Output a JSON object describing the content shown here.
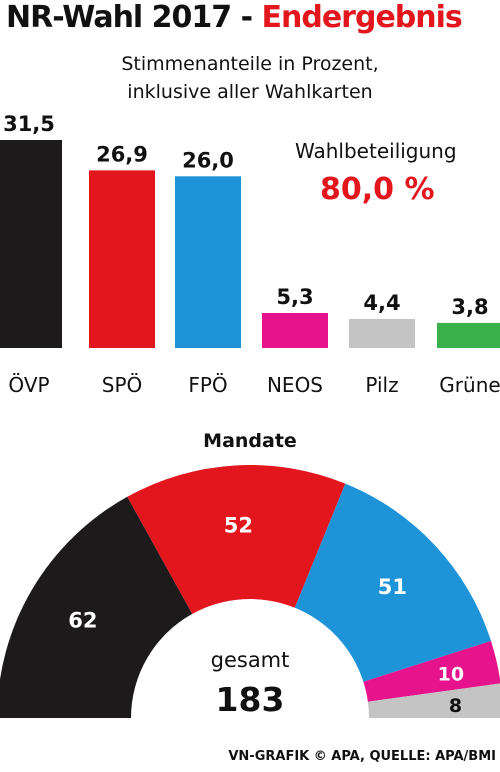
{
  "header": {
    "title_main": "NR-Wahl 2017 - ",
    "title_accent": "Endergebnis",
    "subtitle_line1": "Stimmenanteile in Prozent,",
    "subtitle_line2": "inklusive aller Wahlkarten"
  },
  "turnout": {
    "label": "Wahlbeteiligung",
    "value": "80,0 %"
  },
  "seats": {
    "title": "Mandate",
    "total_label": "gesamt",
    "total_value": "183"
  },
  "footer": {
    "source": "VN-GRAFIK © APA, QUELLE: APA/BMI"
  },
  "colors": {
    "ÖVP": "#1d1a1b",
    "SPÖ": "#e3161e",
    "FPÖ": "#1f93d8",
    "NEOS": "#e6138c",
    "Pilz": "#c4c4c4",
    "Grüne": "#3ab14a",
    "accent": "#e3161e"
  },
  "chart_data": [
    {
      "type": "bar",
      "title": "",
      "categories": [
        "ÖVP",
        "SPÖ",
        "FPÖ",
        "NEOS",
        "Pilz",
        "Grüne"
      ],
      "values": [
        31.5,
        26.9,
        26.0,
        5.3,
        4.4,
        3.8
      ],
      "value_labels": [
        "31,5",
        "26,9",
        "26,0",
        "5,3",
        "4,4",
        "3,8"
      ],
      "ylim": [
        0,
        31.5
      ],
      "grid": false
    },
    {
      "type": "pie",
      "title": "Mandate",
      "style": "hemicycle",
      "categories": [
        "ÖVP",
        "SPÖ",
        "FPÖ",
        "NEOS",
        "Pilz"
      ],
      "values": [
        62,
        52,
        51,
        10,
        8
      ],
      "total": 183
    }
  ]
}
